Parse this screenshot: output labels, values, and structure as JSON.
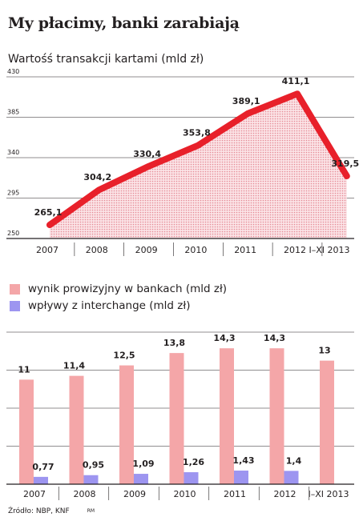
{
  "title": "My płacimy, banki zarabiają",
  "source": {
    "text": "Źródło: NBP, KNF",
    "tag": "RM"
  },
  "chart_data": [
    {
      "type": "area",
      "title": "Wartośś transakcji kartami (mld zł)",
      "categories": [
        "2007",
        "2008",
        "2009",
        "2010",
        "2011",
        "2012",
        "I–XI 2013"
      ],
      "series": [
        {
          "values": [
            265.1,
            304.2,
            330.4,
            353.8,
            389.1,
            411.1,
            319.5
          ]
        }
      ],
      "data_labels": [
        "265,1",
        "304,2",
        "330,4",
        "353,8",
        "389,1",
        "411,1",
        "319,5"
      ],
      "y_ticks": [
        250,
        295,
        340,
        385,
        430
      ],
      "ylim": [
        250,
        430
      ],
      "grid": true,
      "colors": {
        "line": "#e8202a",
        "fill": "#f0a7ae"
      }
    },
    {
      "type": "bar",
      "categories": [
        "2007",
        "2008",
        "2009",
        "2010",
        "2011",
        "2012",
        "I–XI 2013"
      ],
      "series": [
        {
          "name": "wynik prowizyjny w bankach (mld zł)",
          "values": [
            11,
            11.4,
            12.5,
            13.8,
            14.3,
            14.3,
            13
          ],
          "labels": [
            "11",
            "11,4",
            "12,5",
            "13,8",
            "14,3",
            "14,3",
            "13"
          ],
          "color": "#f4a6a8"
        },
        {
          "name": "wpływy z interchange (mld zł)",
          "values": [
            0.77,
            0.95,
            1.09,
            1.26,
            1.43,
            1.4,
            null
          ],
          "labels": [
            "0,77",
            "0,95",
            "1,09",
            "1,26",
            "1,43",
            "1,4",
            ""
          ],
          "color": "#9d95f0"
        }
      ],
      "ylim": [
        0,
        16
      ],
      "grid": true,
      "legend_position": "top-left"
    }
  ]
}
